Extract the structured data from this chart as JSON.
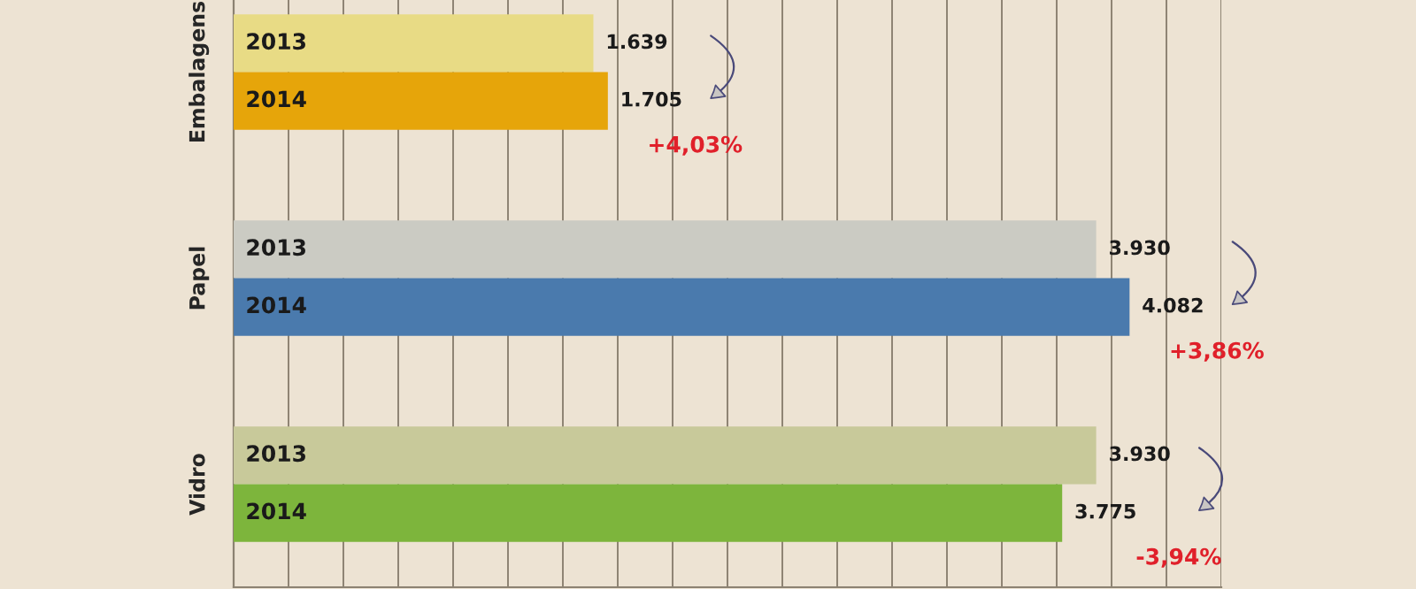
{
  "chart_data": {
    "type": "bar",
    "orientation": "horizontal",
    "categories": [
      "Embalagens",
      "Papel",
      "Vidro"
    ],
    "series": [
      {
        "name": "2013",
        "colors": [
          "#e8db85",
          "#cbcbc3",
          "#c8c99a"
        ],
        "values": [
          1639,
          3930,
          3930
        ],
        "value_labels": [
          "1.639",
          "3.930",
          "3.930"
        ]
      },
      {
        "name": "2014",
        "colors": [
          "#e6a50a",
          "#4a7aad",
          "#7db53c"
        ],
        "values": [
          1705,
          4082,
          3775
        ],
        "value_labels": [
          "1.705",
          "4.082",
          "3.775"
        ]
      }
    ],
    "xlim": [
      0,
      4500
    ],
    "xticks": [
      {
        "value": 0,
        "label": null
      },
      {
        "value": 250,
        "label": null
      },
      {
        "value": 500,
        "label": null
      },
      {
        "value": 750,
        "label": null
      },
      {
        "value": 1000,
        "label": null
      },
      {
        "value": 1250,
        "label": null
      },
      {
        "value": 1500,
        "label": null
      },
      {
        "value": 1750,
        "label": null
      },
      {
        "value": 2000,
        "label": null
      },
      {
        "value": 2250,
        "label": null
      },
      {
        "value": 2500,
        "label": null
      },
      {
        "value": 2750,
        "label": null
      },
      {
        "value": 3000,
        "label": null
      },
      {
        "value": 3250,
        "label": null
      },
      {
        "value": 3500,
        "label": null
      },
      {
        "value": 3750,
        "label": null
      },
      {
        "value": 4000,
        "label": null
      },
      {
        "value": 4250,
        "label": null
      },
      {
        "value": 4500,
        "label": null
      }
    ],
    "grid": "x",
    "tick_labels": "y",
    "annotations": [
      "+4,03%",
      "+3,86%",
      "-3,94%"
    ]
  }
}
